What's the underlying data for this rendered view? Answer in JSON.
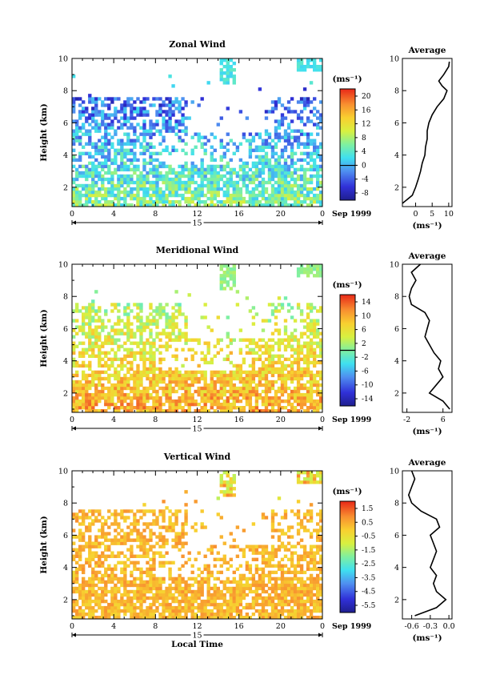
{
  "chart_data": [
    {
      "type": "heatmap",
      "title": "Zonal Wind",
      "ylabel": "Height (km)",
      "x_ticks": [
        "0",
        "4",
        "8",
        "12",
        "16",
        "20",
        "0"
      ],
      "xlim": [
        0,
        24
      ],
      "y_ticks": [
        "2",
        "4",
        "6",
        "8",
        "10"
      ],
      "ylim": [
        0.8,
        10
      ],
      "date_label": "15",
      "date_suffix": "Sep 1999",
      "colorbar_unit": "(ms⁻¹)",
      "colorbar_ticks": [
        "20",
        "16",
        "12",
        "8",
        "4",
        "0",
        "-4",
        "-8"
      ],
      "colorbar_range": [
        -10,
        22
      ],
      "colorbar_zero": 0,
      "avg_title": "Average",
      "avg_xlabel": "(ms⁻¹)",
      "avg_x_ticks": [
        "0",
        "5",
        "10"
      ],
      "avg_xlim": [
        -4,
        11
      ],
      "avg_y_ticks": [
        "2",
        "4",
        "6",
        "8",
        "10"
      ],
      "avg_profile": [
        [
          1,
          -4
        ],
        [
          1.5,
          -1
        ],
        [
          2,
          0
        ],
        [
          2.5,
          0.8
        ],
        [
          3,
          1.5
        ],
        [
          3.5,
          2
        ],
        [
          4,
          2.8
        ],
        [
          4.5,
          3
        ],
        [
          5,
          3.5
        ],
        [
          5.5,
          3.5
        ],
        [
          6,
          4
        ],
        [
          6.5,
          5
        ],
        [
          7,
          6.5
        ],
        [
          7.5,
          8.5
        ],
        [
          8,
          9.5
        ],
        [
          8.3,
          8
        ],
        [
          8.6,
          7
        ],
        [
          9,
          8.5
        ],
        [
          9.5,
          10
        ],
        [
          9.8,
          10.2
        ]
      ],
      "field": {
        "base_value": 6,
        "slope_per_km": -1.5,
        "top_value": 3,
        "range_low": -9,
        "range_high": 12
      }
    },
    {
      "type": "heatmap",
      "title": "Meridional Wind",
      "ylabel": "Height (km)",
      "x_ticks": [
        "0",
        "4",
        "8",
        "12",
        "16",
        "20",
        "0"
      ],
      "xlim": [
        0,
        24
      ],
      "y_ticks": [
        "2",
        "4",
        "6",
        "8",
        "10"
      ],
      "ylim": [
        0.8,
        10
      ],
      "date_label": "15",
      "date_suffix": "Sep 1999",
      "colorbar_unit": "(ms⁻¹)",
      "colorbar_ticks": [
        "14",
        "10",
        "6",
        "2",
        "-2",
        "-6",
        "-10",
        "-14"
      ],
      "colorbar_range": [
        -16,
        16
      ],
      "colorbar_zero": 0,
      "avg_title": "Average",
      "avg_xlabel": "(ms⁻¹)",
      "avg_x_ticks": [
        "-2",
        "6"
      ],
      "avg_xlim": [
        -3,
        8
      ],
      "avg_y_ticks": [
        "2",
        "4",
        "6",
        "8",
        "10"
      ],
      "avg_profile": [
        [
          1,
          7.5
        ],
        [
          1.5,
          6
        ],
        [
          2,
          3
        ],
        [
          2.5,
          4.5
        ],
        [
          3,
          6
        ],
        [
          3.5,
          5
        ],
        [
          4,
          5.5
        ],
        [
          4.5,
          4
        ],
        [
          5,
          3
        ],
        [
          5.5,
          2
        ],
        [
          6,
          2.5
        ],
        [
          6.5,
          3
        ],
        [
          7,
          2
        ],
        [
          7.5,
          -1
        ],
        [
          8,
          -1.5
        ],
        [
          8.5,
          -1
        ],
        [
          9,
          0
        ],
        [
          9.5,
          -1
        ],
        [
          10,
          1
        ]
      ],
      "field": {
        "base_value": 10,
        "slope_per_km": -1.2,
        "top_value": 1,
        "range_low": -3,
        "range_high": 14
      }
    },
    {
      "type": "heatmap",
      "title": "Vertical Wind",
      "ylabel": "Height (km)",
      "xlabel": "Local Time",
      "x_ticks": [
        "0",
        "4",
        "8",
        "12",
        "16",
        "20",
        "0"
      ],
      "xlim": [
        0,
        24
      ],
      "y_ticks": [
        "2",
        "4",
        "6",
        "8",
        "10"
      ],
      "ylim": [
        0.8,
        10
      ],
      "date_label": "15",
      "date_suffix": "Sep 1999",
      "colorbar_unit": "(ms⁻¹)",
      "colorbar_ticks": [
        "1.5",
        "0.5",
        "-0.5",
        "-1.5",
        "-2.5",
        "-3.5",
        "-4.5",
        "-5.5"
      ],
      "colorbar_range": [
        -6,
        2
      ],
      "colorbar_zero": null,
      "avg_title": "Average",
      "avg_xlabel": "(ms⁻¹)",
      "avg_x_ticks": [
        "-0.6",
        "-0.3",
        "0.0"
      ],
      "avg_xlim": [
        -0.75,
        0.05
      ],
      "avg_y_ticks": [
        "2",
        "4",
        "6",
        "8",
        "10"
      ],
      "avg_profile": [
        [
          1,
          -0.55
        ],
        [
          1.5,
          -0.2
        ],
        [
          2,
          -0.05
        ],
        [
          2.5,
          -0.2
        ],
        [
          3,
          -0.25
        ],
        [
          3.5,
          -0.2
        ],
        [
          4,
          -0.3
        ],
        [
          4.5,
          -0.25
        ],
        [
          5,
          -0.2
        ],
        [
          5.5,
          -0.25
        ],
        [
          6,
          -0.3
        ],
        [
          6.5,
          -0.15
        ],
        [
          7,
          -0.2
        ],
        [
          7.5,
          -0.45
        ],
        [
          8,
          -0.6
        ],
        [
          8.5,
          -0.65
        ],
        [
          9,
          -0.6
        ],
        [
          9.5,
          -0.55
        ],
        [
          10,
          -0.6
        ]
      ],
      "field": {
        "base_value": 0.3,
        "slope_per_km": 0,
        "top_value": -0.5,
        "range_low": -1.3,
        "range_high": 1.3
      }
    }
  ]
}
